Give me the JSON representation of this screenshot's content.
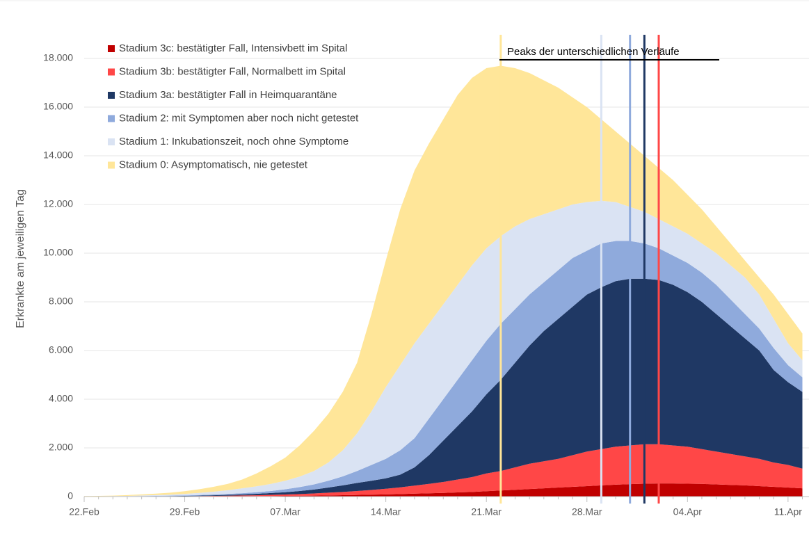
{
  "chart_data": {
    "type": "stacked-area",
    "y_label": "Erkrankte am jeweiligen Tag",
    "annotation": "Peaks der unterschiedlichen Verläufe",
    "categories": [
      "22.Feb",
      null,
      null,
      null,
      null,
      null,
      null,
      "29.Feb",
      null,
      null,
      null,
      null,
      null,
      null,
      "07.Mar",
      null,
      null,
      null,
      null,
      null,
      null,
      "14.Mar",
      null,
      null,
      null,
      null,
      null,
      null,
      "21.Mar",
      null,
      null,
      null,
      null,
      null,
      null,
      "28.Mar",
      null,
      null,
      null,
      null,
      null,
      null,
      "04.Apr",
      null,
      null,
      null,
      null,
      null,
      null,
      "11.Apr",
      null
    ],
    "ylim": [
      0,
      18000
    ],
    "yticks": [
      0,
      {
        "value": 2000,
        "label": "2.000"
      },
      {
        "value": 4000,
        "label": "4.000"
      },
      {
        "value": 6000,
        "label": "6.000"
      },
      {
        "value": 8000,
        "label": "8.000"
      },
      {
        "value": 10000,
        "label": "10.000"
      },
      {
        "value": 12000,
        "label": "12.000"
      },
      {
        "value": 14000,
        "label": "14.000"
      },
      {
        "value": 16000,
        "label": "16.000"
      },
      {
        "value": 18000,
        "label": "18.000"
      }
    ],
    "grid": true,
    "series": [
      {
        "name": "Stadium 3c: bestätigter Fall, Intensivbett im Spital",
        "color": "#c00000",
        "peak_day": 40,
        "values": [
          0,
          0,
          1,
          1,
          2,
          3,
          4,
          5,
          7,
          9,
          12,
          15,
          18,
          22,
          27,
          33,
          40,
          48,
          57,
          67,
          78,
          90,
          105,
          120,
          135,
          150,
          170,
          190,
          220,
          250,
          280,
          310,
          340,
          370,
          400,
          430,
          460,
          490,
          510,
          530,
          540,
          540,
          530,
          520,
          500,
          480,
          460,
          430,
          400,
          370,
          340
        ]
      },
      {
        "name": "Stadium 3b: bestätigter Fall, Normalbett im Spital",
        "color": "#ff4747",
        "peak_day": 40,
        "values": [
          1,
          2,
          2,
          3,
          4,
          5,
          7,
          10,
          13,
          18,
          23,
          30,
          37,
          48,
          58,
          72,
          90,
          112,
          133,
          163,
          192,
          230,
          275,
          330,
          385,
          450,
          530,
          610,
          730,
          800,
          920,
          1040,
          1110,
          1180,
          1300,
          1420,
          1490,
          1560,
          1590,
          1620,
          1610,
          1560,
          1520,
          1430,
          1350,
          1270,
          1190,
          1120,
          1000,
          930,
          810
        ]
      },
      {
        "name": "Stadium 3a: bestätigter Fall in Heimquarantäne",
        "color": "#1f3864",
        "peak_day": 39,
        "values": [
          2,
          2,
          3,
          4,
          6,
          8,
          11,
          15,
          20,
          28,
          35,
          45,
          60,
          75,
          95,
          125,
          160,
          210,
          270,
          330,
          380,
          430,
          520,
          750,
          1180,
          1700,
          2200,
          2700,
          3250,
          3750,
          4300,
          4850,
          5350,
          5750,
          6100,
          6450,
          6650,
          6800,
          6850,
          6800,
          6750,
          6600,
          6350,
          6050,
          5650,
          5250,
          4850,
          4450,
          3800,
          3400,
          3150
        ]
      },
      {
        "name": "Stadium 2: mit Symptomen aber noch nicht getestet",
        "color": "#8faadc",
        "peak_day": 38,
        "values": [
          2,
          3,
          4,
          7,
          8,
          12,
          16,
          20,
          25,
          30,
          40,
          50,
          65,
          85,
          120,
          160,
          210,
          280,
          370,
          490,
          650,
          800,
          1000,
          1200,
          1500,
          1700,
          1900,
          2100,
          2200,
          2300,
          2200,
          2100,
          2000,
          2000,
          2000,
          1800,
          1800,
          1650,
          1550,
          1450,
          1300,
          1200,
          1200,
          1200,
          1200,
          1100,
          1000,
          900,
          900,
          700,
          600
        ]
      },
      {
        "name": "Stadium 1: Inkubationszeit, noch ohne Symptome",
        "color": "#dae3f3",
        "peak_day": 36,
        "values": [
          5,
          8,
          10,
          15,
          25,
          32,
          42,
          60,
          85,
          115,
          150,
          200,
          240,
          290,
          350,
          430,
          550,
          750,
          1070,
          1550,
          2200,
          2950,
          3500,
          3900,
          3900,
          3900,
          3900,
          3900,
          3800,
          3600,
          3400,
          3100,
          2800,
          2500,
          2200,
          2000,
          1750,
          1600,
          1400,
          1300,
          1200,
          1200,
          1200,
          1200,
          1300,
          1400,
          1500,
          1400,
          1200,
          900,
          700
        ]
      },
      {
        "name": "Stadium 0: Asymptomatisch, nie getestet",
        "color": "#ffe699",
        "peak_day": 29,
        "values": [
          10,
          15,
          20,
          30,
          45,
          60,
          80,
          110,
          150,
          200,
          260,
          360,
          530,
          730,
          950,
          1280,
          1650,
          2000,
          2400,
          2900,
          4000,
          5200,
          6400,
          7100,
          7400,
          7600,
          7800,
          7700,
          7400,
          7000,
          6500,
          6000,
          5500,
          5000,
          4400,
          3900,
          3350,
          2900,
          2600,
          2300,
          2100,
          1900,
          1600,
          1400,
          1100,
          900,
          700,
          700,
          1000,
          1200,
          1100
        ]
      }
    ]
  }
}
